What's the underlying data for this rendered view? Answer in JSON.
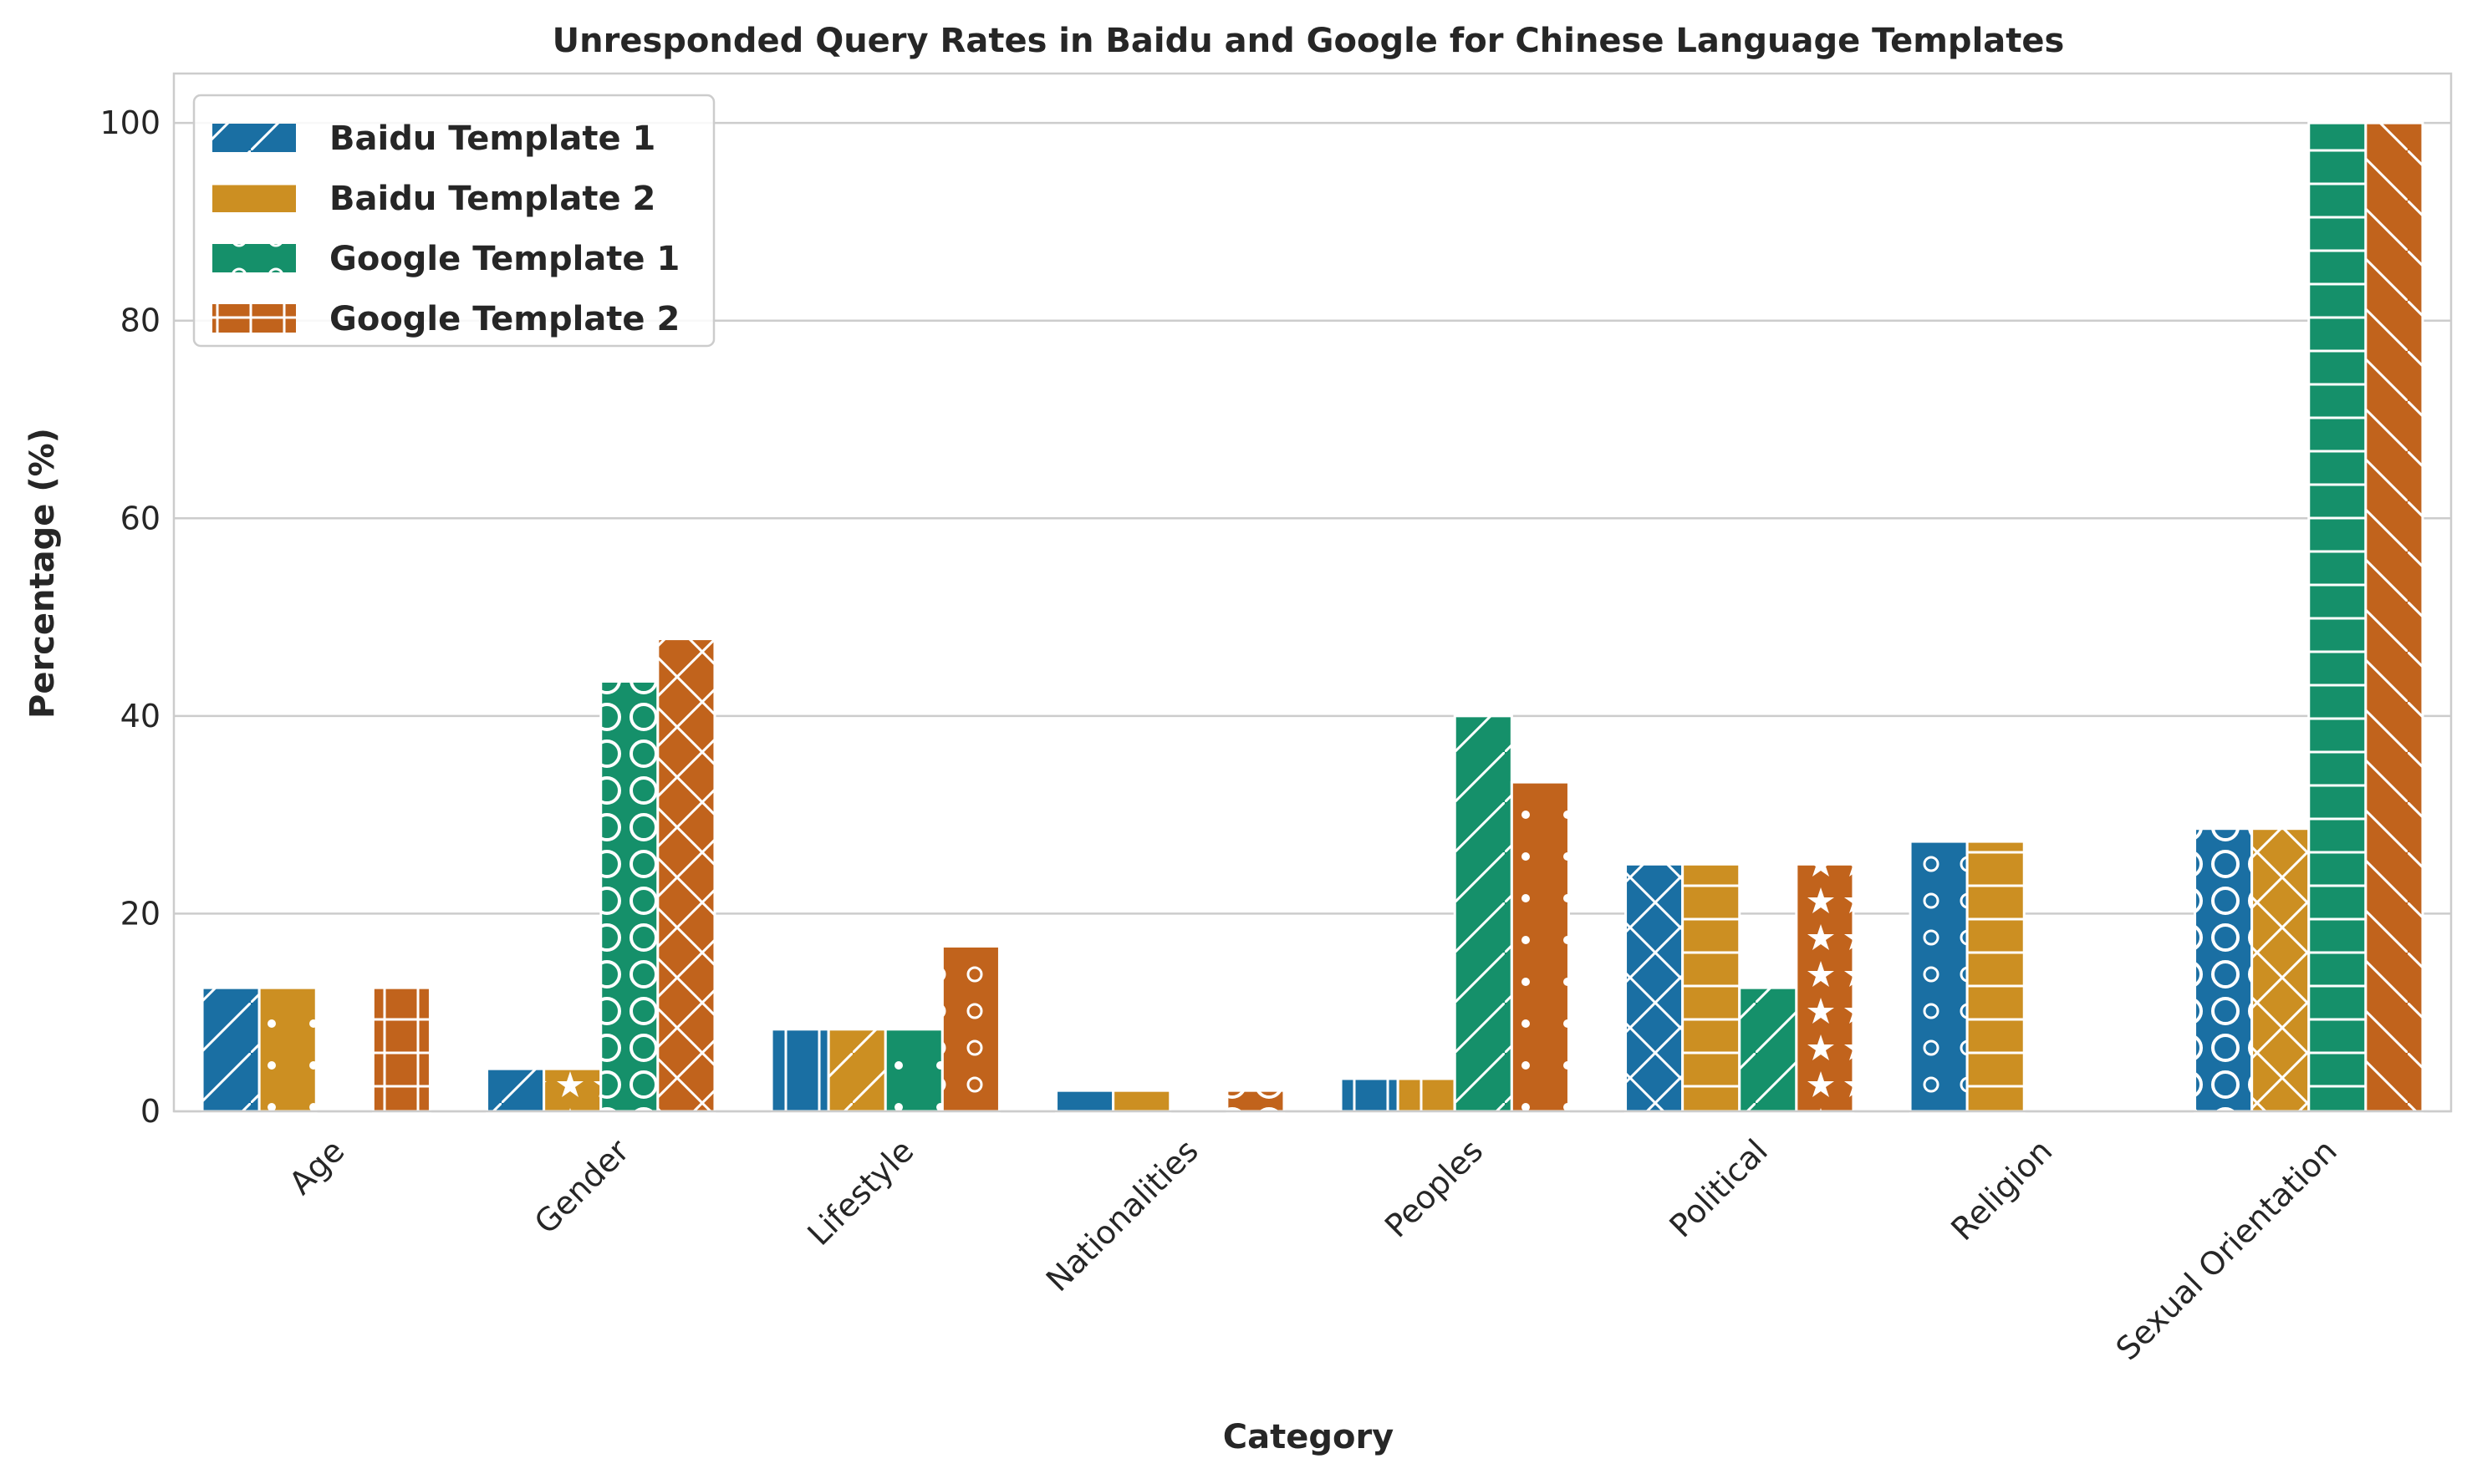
{
  "chart_data": {
    "type": "bar",
    "title": "Unresponded Query Rates in Baidu and Google for Chinese Language Templates",
    "xlabel": "Category",
    "ylabel": "Percentage (%)",
    "ylim": [
      0,
      105
    ],
    "yticks": [
      0,
      20,
      40,
      60,
      80,
      100
    ],
    "grid": "y",
    "legend_position": "top-left",
    "categories": [
      "Age",
      "Gender",
      "Lifestyle",
      "Nationalities",
      "Peoples",
      "Political",
      "Religion",
      "Sexual Orientation"
    ],
    "series": [
      {
        "name": "Baidu Template 1",
        "color": "#1a6fa3",
        "values": [
          12.5,
          4.3,
          8.3,
          2.1,
          3.3,
          25.0,
          27.3,
          28.6
        ]
      },
      {
        "name": "Baidu Template 2",
        "color": "#cc8f22",
        "values": [
          12.5,
          4.3,
          8.3,
          2.1,
          3.3,
          25.0,
          27.3,
          28.6
        ]
      },
      {
        "name": "Google Template 1",
        "color": "#15906a",
        "values": [
          0,
          43.5,
          8.3,
          0,
          40.0,
          12.5,
          0,
          100.0
        ]
      },
      {
        "name": "Google Template 2",
        "color": "#c1631c",
        "values": [
          12.5,
          47.8,
          16.7,
          2.1,
          33.3,
          25.0,
          0,
          100.0
        ]
      }
    ]
  }
}
